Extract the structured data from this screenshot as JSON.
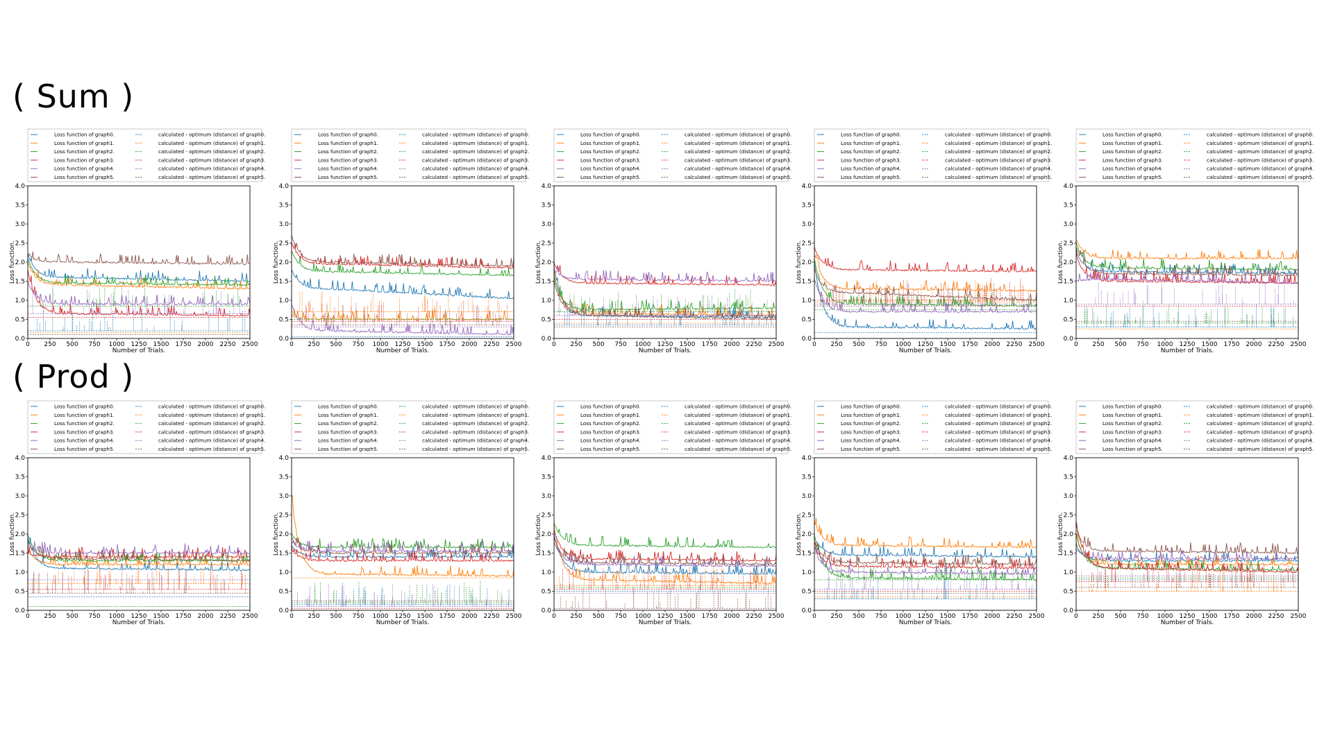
{
  "sections": {
    "sum_label": "( Sum )",
    "prod_label": "( Prod )"
  },
  "colors": {
    "graph0": "#1f77b4",
    "graph1": "#ff7f0e",
    "graph2": "#2ca02c",
    "graph3": "#d62728",
    "graph4": "#9467bd",
    "graph5": "#8c564b"
  },
  "legend": {
    "loss": [
      "Loss function of graph0.",
      "Loss function of graph1.",
      "Loss function of graph2.",
      "Loss function of graph3.",
      "Loss function of graph4.",
      "Loss function of graph5."
    ],
    "dist": [
      "calculated - optimum (distance) of graph0.",
      "calculated - optimum (distance) of graph1.",
      "calculated - optimum (distance) of graph2.",
      "calculated - optimum (distance) of graph3.",
      "calculated - optimum (distance) of graph4.",
      "calculated - optimum (distance) of graph5."
    ]
  },
  "chart_data": [
    {
      "row": "sum",
      "type": "line",
      "xlabel": "Number of Trials.",
      "ylabel": "Loss function.",
      "xlim": [
        0,
        2500
      ],
      "ylim": [
        0,
        4
      ],
      "x_ticks": [
        0,
        250,
        500,
        750,
        1000,
        1250,
        1500,
        1750,
        2000,
        2250,
        2500
      ],
      "y_ticks": [
        "0.0",
        "0.5",
        "1.0",
        "1.5",
        "2.0",
        "2.5",
        "3.0",
        "3.5",
        "4.0"
      ],
      "series": [
        {
          "name": "graph0",
          "loss": [
            2.2,
            1.6,
            1.5
          ],
          "distance": 0.2
        },
        {
          "name": "graph1",
          "loss": [
            2.0,
            1.4,
            1.3
          ],
          "distance": 0.15
        },
        {
          "name": "graph2",
          "loss": [
            2.1,
            1.45,
            1.4
          ],
          "distance": 0.85
        },
        {
          "name": "graph3",
          "loss": [
            1.8,
            0.65,
            0.6
          ],
          "distance": 0.55
        },
        {
          "name": "graph4",
          "loss": [
            1.5,
            0.9,
            0.9
          ],
          "distance": 0.65
        },
        {
          "name": "graph5",
          "loss": [
            2.2,
            2.0,
            1.95
          ],
          "distance": 0.1
        }
      ]
    },
    {
      "row": "sum",
      "type": "line",
      "xlabel": "Number of Trials.",
      "ylabel": "Loss function.",
      "xlim": [
        0,
        2500
      ],
      "ylim": [
        0,
        4
      ],
      "x_ticks": [
        0,
        250,
        500,
        750,
        1000,
        1250,
        1500,
        1750,
        2000,
        2250,
        2500
      ],
      "y_ticks": [
        "0.0",
        "0.5",
        "1.0",
        "1.5",
        "2.0",
        "2.5",
        "3.0",
        "3.5",
        "4.0"
      ],
      "series": [
        {
          "name": "graph0",
          "loss": [
            1.8,
            1.3,
            1.05
          ],
          "distance": 0.05
        },
        {
          "name": "graph1",
          "loss": [
            0.6,
            0.5,
            0.5
          ],
          "distance": 0.7
        },
        {
          "name": "graph2",
          "loss": [
            2.3,
            1.75,
            1.65
          ],
          "distance": 0.5
        },
        {
          "name": "graph3",
          "loss": [
            2.5,
            1.95,
            1.85
          ],
          "distance": 0.45
        },
        {
          "name": "graph4",
          "loss": [
            0.9,
            0.2,
            0.1
          ],
          "distance": 0.3
        },
        {
          "name": "graph5",
          "loss": [
            2.7,
            2.0,
            1.9
          ],
          "distance": 0.35
        }
      ]
    },
    {
      "row": "sum",
      "type": "line",
      "xlabel": "Number of Trials.",
      "ylabel": "Loss function.",
      "xlim": [
        0,
        2500
      ],
      "ylim": [
        0,
        4
      ],
      "x_ticks": [
        0,
        250,
        500,
        750,
        1000,
        1250,
        1500,
        1750,
        2000,
        2250,
        2500
      ],
      "y_ticks": [
        "0.0",
        "0.5",
        "1.0",
        "1.5",
        "2.0",
        "2.5",
        "3.0",
        "3.5",
        "4.0"
      ],
      "series": [
        {
          "name": "graph0",
          "loss": [
            1.9,
            0.6,
            0.55
          ],
          "distance": 0.35
        },
        {
          "name": "graph1",
          "loss": [
            1.7,
            0.65,
            0.6
          ],
          "distance": 0.4
        },
        {
          "name": "graph2",
          "loss": [
            1.6,
            0.75,
            0.8
          ],
          "distance": 0.7
        },
        {
          "name": "graph3",
          "loss": [
            2.0,
            1.45,
            1.4
          ],
          "distance": 0.5
        },
        {
          "name": "graph4",
          "loss": [
            1.8,
            1.55,
            1.5
          ],
          "distance": 0.6
        },
        {
          "name": "graph5",
          "loss": [
            1.5,
            0.6,
            0.5
          ],
          "distance": 0.3
        }
      ]
    },
    {
      "row": "sum",
      "type": "line",
      "xlabel": "Number of Trials.",
      "ylabel": "Loss function.",
      "xlim": [
        0,
        2500
      ],
      "ylim": [
        0,
        4
      ],
      "x_ticks": [
        0,
        250,
        500,
        750,
        1000,
        1250,
        1500,
        1750,
        2000,
        2250,
        2500
      ],
      "y_ticks": [
        "0.0",
        "0.5",
        "1.0",
        "1.5",
        "2.0",
        "2.5",
        "3.0",
        "3.5",
        "4.0"
      ],
      "series": [
        {
          "name": "graph0",
          "loss": [
            2.0,
            0.3,
            0.25
          ],
          "distance": 0.15
        },
        {
          "name": "graph1",
          "loss": [
            2.2,
            1.3,
            1.25
          ],
          "distance": 0.95
        },
        {
          "name": "graph2",
          "loss": [
            2.1,
            0.9,
            0.85
          ],
          "distance": 0.75
        },
        {
          "name": "graph3",
          "loss": [
            2.4,
            1.8,
            1.75
          ],
          "distance": 1.0
        },
        {
          "name": "graph4",
          "loss": [
            1.6,
            0.7,
            0.7
          ],
          "distance": 0.9
        },
        {
          "name": "graph5",
          "loss": [
            1.8,
            1.2,
            1.0
          ],
          "distance": 0.85
        }
      ]
    },
    {
      "row": "sum",
      "type": "line",
      "xlabel": "Number of Trials.",
      "ylabel": "Loss function.",
      "xlim": [
        0,
        2500
      ],
      "ylim": [
        0,
        4
      ],
      "x_ticks": [
        0,
        250,
        500,
        750,
        1000,
        1250,
        1500,
        1750,
        2000,
        2250,
        2500
      ],
      "y_ticks": [
        "0.0",
        "0.5",
        "1.0",
        "1.5",
        "2.0",
        "2.5",
        "3.0",
        "3.5",
        "4.0"
      ],
      "series": [
        {
          "name": "graph0",
          "loss": [
            2.3,
            1.75,
            1.7
          ],
          "distance": 0.3
        },
        {
          "name": "graph1",
          "loss": [
            2.6,
            2.1,
            2.1
          ],
          "distance": 0.25
        },
        {
          "name": "graph2",
          "loss": [
            2.5,
            1.85,
            1.8
          ],
          "distance": 0.4
        },
        {
          "name": "graph3",
          "loss": [
            2.2,
            1.5,
            1.45
          ],
          "distance": 0.85
        },
        {
          "name": "graph4",
          "loss": [
            1.5,
            1.55,
            1.45
          ],
          "distance": 0.9
        },
        {
          "name": "graph5",
          "loss": [
            2.4,
            1.7,
            1.65
          ],
          "distance": 0.45
        }
      ]
    },
    {
      "row": "prod",
      "type": "line",
      "xlabel": "Number of Trials.",
      "ylabel": "Loss function.",
      "xlim": [
        0,
        2500
      ],
      "ylim": [
        0,
        4
      ],
      "x_ticks": [
        0,
        250,
        500,
        750,
        1000,
        1250,
        1500,
        1750,
        2000,
        2250,
        2500
      ],
      "y_ticks": [
        "0.0",
        "0.5",
        "1.0",
        "1.5",
        "2.0",
        "2.5",
        "3.0",
        "3.5",
        "4.0"
      ],
      "series": [
        {
          "name": "graph0",
          "loss": [
            1.9,
            1.1,
            1.05
          ],
          "distance": 0.35
        },
        {
          "name": "graph1",
          "loss": [
            1.6,
            1.2,
            1.2
          ],
          "distance": 0.7
        },
        {
          "name": "graph2",
          "loss": [
            2.0,
            1.3,
            1.3
          ],
          "distance": 0.1
        },
        {
          "name": "graph3",
          "loss": [
            1.5,
            1.4,
            1.4
          ],
          "distance": 0.55
        },
        {
          "name": "graph4",
          "loss": [
            1.7,
            1.5,
            1.5
          ],
          "distance": 0.8
        },
        {
          "name": "graph5",
          "loss": [
            1.8,
            1.35,
            1.3
          ],
          "distance": 0.45
        }
      ]
    },
    {
      "row": "prod",
      "type": "line",
      "xlabel": "Number of Trials.",
      "ylabel": "Loss function.",
      "xlim": [
        0,
        2500
      ],
      "ylim": [
        0,
        4
      ],
      "x_ticks": [
        0,
        250,
        500,
        750,
        1000,
        1250,
        1500,
        1750,
        2000,
        2250,
        2500
      ],
      "y_ticks": [
        "0.0",
        "0.5",
        "1.0",
        "1.5",
        "2.0",
        "2.5",
        "3.0",
        "3.5",
        "4.0"
      ],
      "series": [
        {
          "name": "graph0",
          "loss": [
            1.7,
            1.4,
            1.4
          ],
          "distance": 0.15
        },
        {
          "name": "graph1",
          "loss": [
            3.0,
            0.95,
            0.9
          ],
          "distance": 0.85
        },
        {
          "name": "graph2",
          "loss": [
            2.0,
            1.65,
            1.65
          ],
          "distance": 0.2
        },
        {
          "name": "graph3",
          "loss": [
            1.6,
            1.3,
            1.3
          ],
          "distance": 0.05
        },
        {
          "name": "graph4",
          "loss": [
            1.8,
            1.55,
            1.55
          ],
          "distance": 0.1
        },
        {
          "name": "graph5",
          "loss": [
            1.9,
            1.5,
            1.5
          ],
          "distance": 0.25
        }
      ]
    },
    {
      "row": "prod",
      "type": "line",
      "xlabel": "Number of Trials.",
      "ylabel": "Loss function.",
      "xlim": [
        0,
        2500
      ],
      "ylim": [
        0,
        4
      ],
      "x_ticks": [
        0,
        250,
        500,
        750,
        1000,
        1250,
        1500,
        1750,
        2000,
        2250,
        2500
      ],
      "y_ticks": [
        "0.0",
        "0.5",
        "1.0",
        "1.5",
        "2.0",
        "2.5",
        "3.0",
        "3.5",
        "4.0"
      ],
      "series": [
        {
          "name": "graph0",
          "loss": [
            2.0,
            1.0,
            0.95
          ],
          "distance": 0.5
        },
        {
          "name": "graph1",
          "loss": [
            2.2,
            0.8,
            0.7
          ],
          "distance": 0.65
        },
        {
          "name": "graph2",
          "loss": [
            2.3,
            1.7,
            1.65
          ],
          "distance": 0.6
        },
        {
          "name": "graph3",
          "loss": [
            2.1,
            1.35,
            1.3
          ],
          "distance": 0.55
        },
        {
          "name": "graph4",
          "loss": [
            1.8,
            1.2,
            1.15
          ],
          "distance": 0.45
        },
        {
          "name": "graph5",
          "loss": [
            1.9,
            1.25,
            1.2
          ],
          "distance": 0.05
        }
      ]
    },
    {
      "row": "prod",
      "type": "line",
      "xlabel": "Number of Trials.",
      "ylabel": "Loss function.",
      "xlim": [
        0,
        2500
      ],
      "ylim": [
        0,
        4
      ],
      "x_ticks": [
        0,
        250,
        500,
        750,
        1000,
        1250,
        1500,
        1750,
        2000,
        2250,
        2500
      ],
      "y_ticks": [
        "0.0",
        "0.5",
        "1.0",
        "1.5",
        "2.0",
        "2.5",
        "3.0",
        "3.5",
        "4.0"
      ],
      "series": [
        {
          "name": "graph0",
          "loss": [
            1.9,
            1.45,
            1.4
          ],
          "distance": 0.3
        },
        {
          "name": "graph1",
          "loss": [
            2.3,
            1.7,
            1.65
          ],
          "distance": 0.35
        },
        {
          "name": "graph2",
          "loss": [
            2.0,
            0.85,
            0.8
          ],
          "distance": 0.8
        },
        {
          "name": "graph3",
          "loss": [
            1.7,
            1.15,
            1.1
          ],
          "distance": 0.5
        },
        {
          "name": "graph4",
          "loss": [
            1.6,
            1.0,
            0.95
          ],
          "distance": 0.55
        },
        {
          "name": "graph5",
          "loss": [
            1.8,
            1.25,
            1.2
          ],
          "distance": 0.45
        }
      ]
    },
    {
      "row": "prod",
      "type": "line",
      "xlabel": "Number of Trials.",
      "ylabel": "Loss function.",
      "xlim": [
        0,
        2500
      ],
      "ylim": [
        0,
        4
      ],
      "x_ticks": [
        0,
        250,
        500,
        750,
        1000,
        1250,
        1500,
        1750,
        2000,
        2250,
        2500
      ],
      "y_ticks": [
        "0.0",
        "0.5",
        "1.0",
        "1.5",
        "2.0",
        "2.5",
        "3.0",
        "3.5",
        "4.0"
      ],
      "series": [
        {
          "name": "graph0",
          "loss": [
            1.7,
            1.3,
            1.3
          ],
          "distance": 0.8
        },
        {
          "name": "graph1",
          "loss": [
            1.9,
            1.2,
            1.2
          ],
          "distance": 0.5
        },
        {
          "name": "graph2",
          "loss": [
            2.0,
            1.1,
            1.05
          ],
          "distance": 0.85
        },
        {
          "name": "graph3",
          "loss": [
            2.3,
            1.1,
            1.0
          ],
          "distance": 0.75
        },
        {
          "name": "graph4",
          "loss": [
            1.6,
            1.35,
            1.35
          ],
          "distance": 0.9
        },
        {
          "name": "graph5",
          "loss": [
            2.1,
            1.55,
            1.5
          ],
          "distance": 0.6
        }
      ]
    }
  ]
}
